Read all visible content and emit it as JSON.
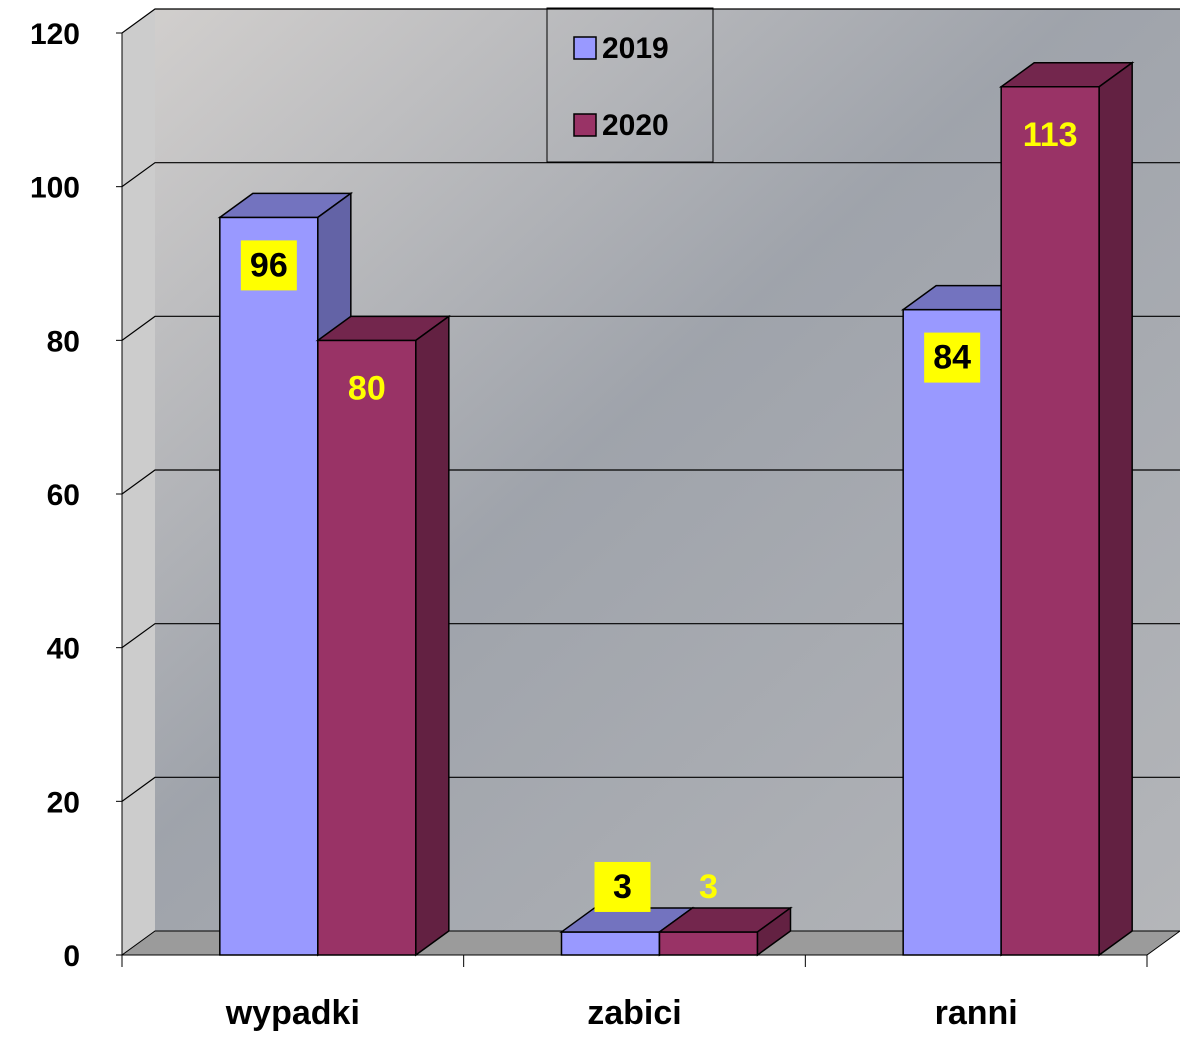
{
  "chart_data": {
    "type": "bar3d",
    "categories": [
      "wypadki",
      "zabici",
      "ranni"
    ],
    "series": [
      {
        "name": "2019",
        "color": "#9999ff",
        "values": [
          96,
          3,
          84
        ]
      },
      {
        "name": "2020",
        "color": "#993366",
        "values": [
          80,
          3,
          113
        ]
      }
    ],
    "ylim": [
      0,
      120
    ],
    "yticks": [
      0,
      20,
      40,
      60,
      80,
      100,
      120
    ],
    "grid": true
  }
}
